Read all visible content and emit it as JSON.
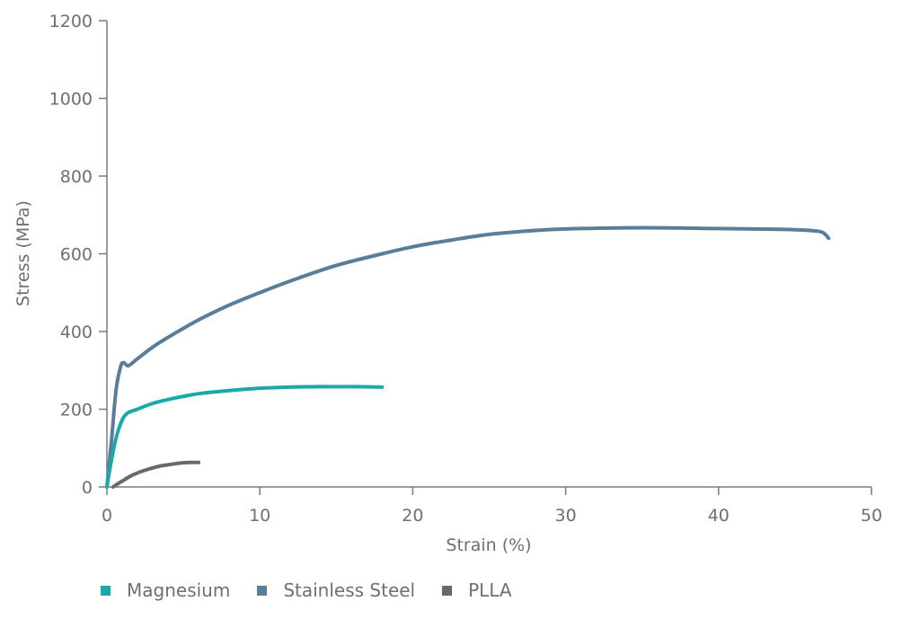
{
  "chart_data": {
    "type": "line",
    "title": "",
    "xlabel": "Strain (%)",
    "ylabel": "Stress (MPa)",
    "xlim": [
      0,
      50
    ],
    "ylim": [
      0,
      1200
    ],
    "xticks": [
      0,
      10,
      20,
      30,
      40,
      50
    ],
    "yticks": [
      0,
      200,
      400,
      600,
      800,
      1000,
      1200
    ],
    "grid": false,
    "legend_position": "bottom-left",
    "series": [
      {
        "name": "Magnesium",
        "color": "#1aa9a6",
        "x": [
          0,
          0.3,
          0.7,
          1.2,
          2,
          3,
          4,
          5,
          6,
          8,
          10,
          12,
          14,
          16,
          18
        ],
        "y": [
          0,
          70,
          140,
          185,
          200,
          215,
          225,
          233,
          240,
          248,
          254,
          257,
          258,
          258,
          257
        ]
      },
      {
        "name": "Stainless Steel",
        "color": "#5a7d98",
        "x": [
          0,
          0.3,
          0.6,
          0.9,
          1.1,
          1.4,
          2,
          3,
          4,
          6,
          8,
          10,
          12,
          15,
          18,
          20,
          22,
          25,
          28,
          30,
          35,
          40,
          44,
          46,
          46.8,
          47.2
        ],
        "y": [
          0,
          120,
          250,
          310,
          320,
          312,
          330,
          360,
          385,
          430,
          468,
          500,
          530,
          570,
          600,
          618,
          632,
          650,
          660,
          664,
          667,
          665,
          663,
          660,
          655,
          640
        ]
      },
      {
        "name": "PLLA",
        "color": "#696a66",
        "x": [
          0.4,
          0.7,
          1,
          1.5,
          2,
          2.5,
          3,
          3.5,
          4,
          4.5,
          5,
          5.5,
          6
        ],
        "y": [
          0,
          8,
          15,
          27,
          36,
          43,
          49,
          54,
          57,
          60,
          62,
          63,
          63
        ]
      }
    ]
  }
}
